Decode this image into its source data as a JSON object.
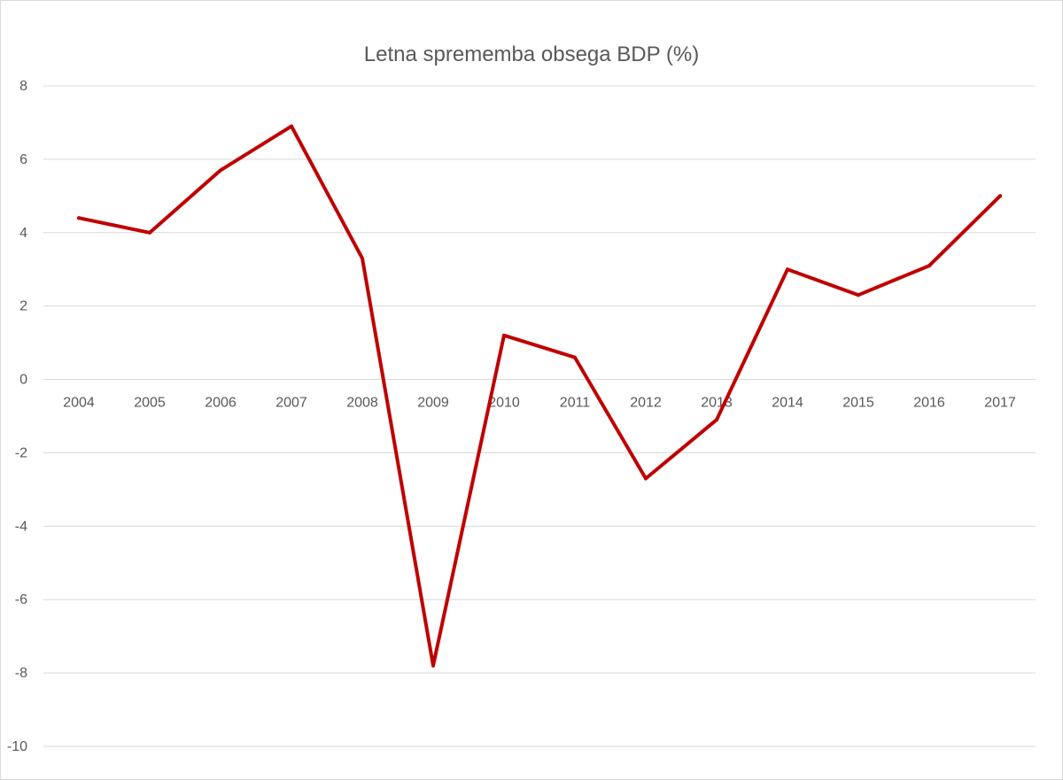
{
  "chart_data": {
    "type": "line",
    "title": "Letna sprememba obsega BDP (%)",
    "xlabel": "",
    "ylabel": "",
    "categories": [
      "2004",
      "2005",
      "2006",
      "2007",
      "2008",
      "2009",
      "2010",
      "2011",
      "2012",
      "2013",
      "2014",
      "2015",
      "2016",
      "2017"
    ],
    "series": [
      {
        "values": [
          4.4,
          4.0,
          5.7,
          6.9,
          3.3,
          -7.8,
          1.2,
          0.6,
          -2.7,
          -1.1,
          3.0,
          2.3,
          3.1,
          5.0
        ],
        "color": "#c00000"
      }
    ],
    "ylim": [
      -10,
      8
    ],
    "yticks": [
      -10,
      -8,
      -6,
      -4,
      -2,
      0,
      2,
      4,
      6,
      8
    ],
    "ytick_labels": [
      "-10",
      "-8",
      "-6",
      "-4",
      "-2",
      "0",
      "2",
      "4",
      "6",
      "8"
    ],
    "grid": "horizontal",
    "legend": "none",
    "category_labels_position": "at zero line"
  }
}
